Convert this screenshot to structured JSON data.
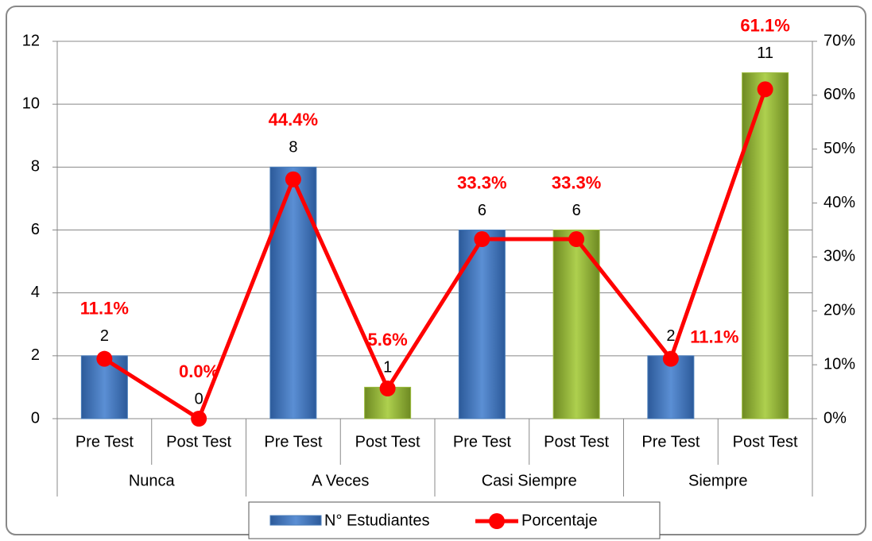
{
  "chart_data": {
    "type": "bar",
    "categories": [
      "Pre Test",
      "Post Test",
      "Pre Test",
      "Post Test",
      "Pre Test",
      "Post Test",
      "Pre Test",
      "Post Test"
    ],
    "groups": [
      "Nunca",
      "A Veces",
      "Casi Siempre",
      "Siempre"
    ],
    "series": [
      {
        "name": "N° Estudiantes",
        "type": "bar",
        "color": "#4a7ebb",
        "colors": [
          "#4a7ebb",
          "#9bbb3c",
          "#4a7ebb",
          "#9bbb3c",
          "#4a7ebb",
          "#9bbb3c",
          "#4a7ebb",
          "#9bbb3c"
        ],
        "values": [
          2,
          0,
          8,
          1,
          6,
          6,
          2,
          11
        ]
      },
      {
        "name": "Porcentaje",
        "type": "line",
        "axis": "y2",
        "color": "#ff0000",
        "values": [
          11.1,
          0,
          44.4,
          5.6,
          33.3,
          33.3,
          11.1,
          61.1
        ],
        "value_labels": [
          "11.1%",
          "0.0%",
          "44.4%",
          "5.6%",
          "33.3%",
          "33.3%",
          "11.1%",
          "61.1%"
        ]
      }
    ],
    "ylim": [
      0,
      12
    ],
    "yticks": [
      0,
      2,
      4,
      6,
      8,
      10,
      12
    ],
    "y2lim": [
      0,
      70
    ],
    "y2ticks": [
      {
        "value": 0,
        "label": "0%"
      },
      {
        "value": 10,
        "label": "10%"
      },
      {
        "value": 20,
        "label": "20%"
      },
      {
        "value": 30,
        "label": "30%"
      },
      {
        "value": 40,
        "label": "40%"
      },
      {
        "value": 50,
        "label": "50%"
      },
      {
        "value": 60,
        "label": "60%"
      },
      {
        "value": 70,
        "label": "70%"
      }
    ],
    "grid": true,
    "legend": "bottom"
  }
}
